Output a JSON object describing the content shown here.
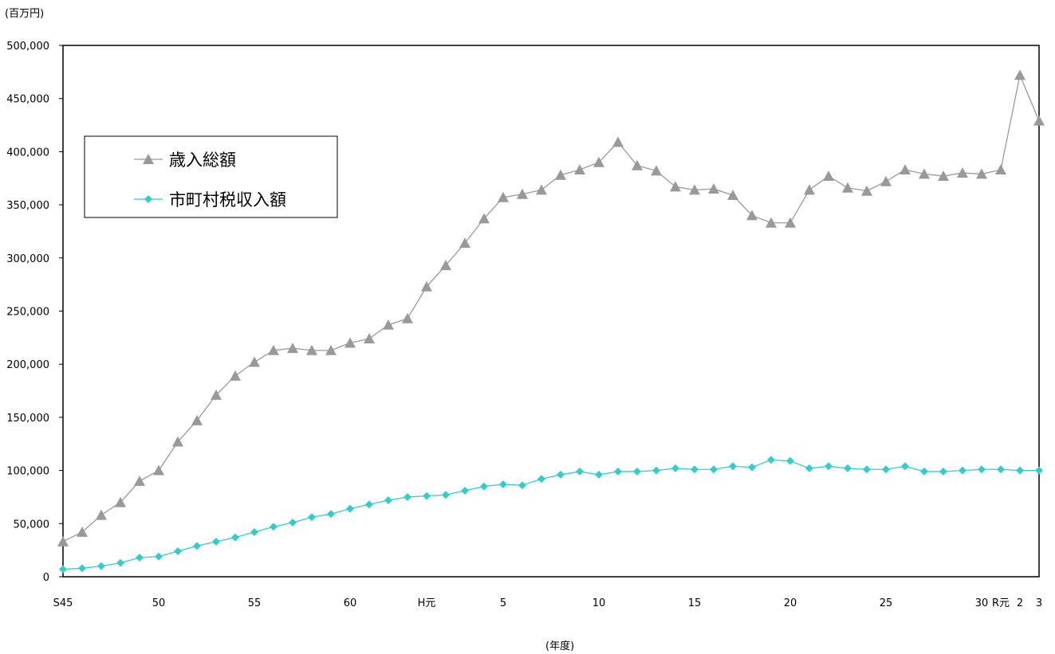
{
  "chart_data": {
    "type": "line",
    "unit_label": "(百万円)",
    "xlabel": "(年度)",
    "ylim": [
      0,
      500000
    ],
    "y_ticks": [
      0,
      50000,
      100000,
      150000,
      200000,
      250000,
      300000,
      350000,
      400000,
      450000,
      500000
    ],
    "y_tick_labels": [
      "0",
      "50,000",
      "100,000",
      "150,000",
      "200,000",
      "250,000",
      "300,000",
      "350,000",
      "400,000",
      "450,000",
      "500,000"
    ],
    "categories": [
      "S45",
      "S46",
      "S47",
      "S48",
      "S49",
      "S50",
      "S51",
      "S52",
      "S53",
      "S54",
      "S55",
      "S56",
      "S57",
      "S58",
      "S59",
      "S60",
      "S61",
      "S62",
      "S63",
      "H元",
      "H2",
      "H3",
      "H4",
      "H5",
      "H6",
      "H7",
      "H8",
      "H9",
      "H10",
      "H11",
      "H12",
      "H13",
      "H14",
      "H15",
      "H16",
      "H17",
      "H18",
      "H19",
      "H20",
      "H21",
      "H22",
      "H23",
      "H24",
      "H25",
      "H26",
      "H27",
      "H28",
      "H29",
      "H30",
      "R元",
      "R2",
      "R3"
    ],
    "x_tick_labels": [
      {
        "index": 0,
        "label": "S45"
      },
      {
        "index": 5,
        "label": "50"
      },
      {
        "index": 10,
        "label": "55"
      },
      {
        "index": 15,
        "label": "60"
      },
      {
        "index": 19,
        "label": "H元"
      },
      {
        "index": 23,
        "label": "5"
      },
      {
        "index": 28,
        "label": "10"
      },
      {
        "index": 33,
        "label": "15"
      },
      {
        "index": 38,
        "label": "20"
      },
      {
        "index": 43,
        "label": "25"
      },
      {
        "index": 48,
        "label": "30"
      },
      {
        "index": 49,
        "label": "R元"
      },
      {
        "index": 50,
        "label": "2"
      },
      {
        "index": 51,
        "label": "3"
      }
    ],
    "series": [
      {
        "name": "歳入総額",
        "color": "#999999",
        "marker": "triangle",
        "values": [
          33000,
          42000,
          58000,
          70000,
          90000,
          100000,
          127000,
          147000,
          171000,
          189000,
          202000,
          213000,
          215000,
          213000,
          213000,
          220000,
          224000,
          237000,
          243000,
          273000,
          293000,
          314000,
          337000,
          357000,
          360000,
          364000,
          378000,
          383000,
          390000,
          409000,
          387000,
          382000,
          367000,
          364000,
          365000,
          359000,
          340000,
          333000,
          333000,
          364000,
          377000,
          366000,
          363000,
          372000,
          383000,
          379000,
          377000,
          380000,
          379000,
          383000,
          472000,
          429000
        ]
      },
      {
        "name": "市町村税収入額",
        "color": "#33CCCC",
        "marker": "diamond",
        "values": [
          7000,
          8000,
          10000,
          13000,
          18000,
          19000,
          24000,
          29000,
          33000,
          37000,
          42000,
          47000,
          51000,
          56000,
          59000,
          64000,
          68000,
          72000,
          75000,
          76000,
          77000,
          81000,
          85000,
          87000,
          86000,
          92000,
          96000,
          99000,
          96000,
          99000,
          99000,
          100000,
          102000,
          101000,
          101000,
          104000,
          103000,
          110000,
          109000,
          102000,
          104000,
          102000,
          101000,
          101000,
          104000,
          99000,
          99000,
          100000,
          101000,
          101000,
          100000,
          100000
        ]
      }
    ],
    "legend_position": "upper-left",
    "grid": false
  }
}
